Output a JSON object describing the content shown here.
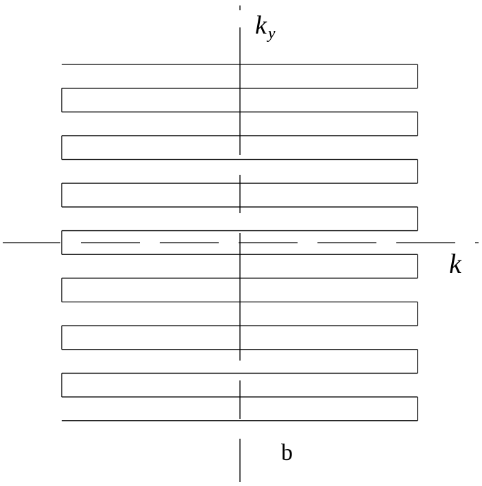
{
  "diagram": {
    "axes": {
      "vertical_label_main": "k",
      "vertical_label_subscript": "y",
      "horizontal_label": "k"
    },
    "panel_label": "b",
    "trajectory": {
      "shape": "zigzag-raster",
      "row_count": 16
    },
    "colors": {
      "line": "#000000",
      "background": "#ffffff"
    }
  }
}
